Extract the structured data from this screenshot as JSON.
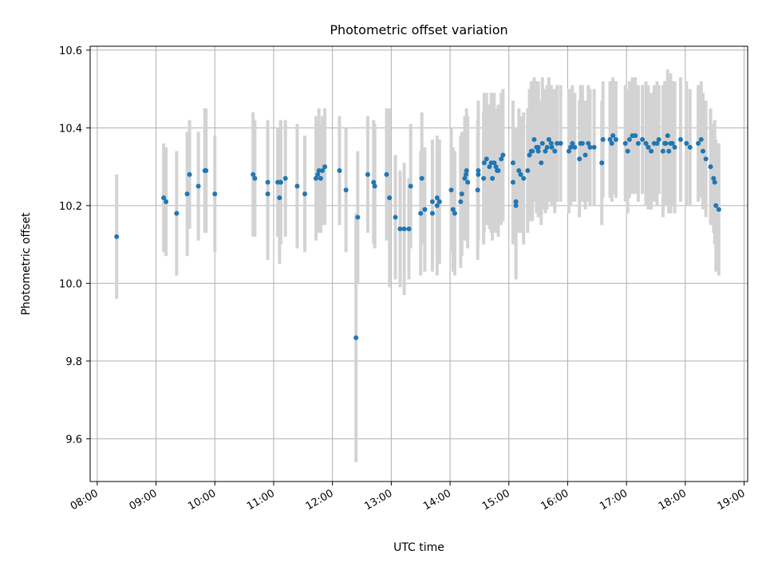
{
  "chart_data": {
    "type": "scatter",
    "title": "Photometric offset variation",
    "xlabel": "UTC time",
    "ylabel": "Photometric offset",
    "x_unit": "hours (UTC)",
    "xlim": [
      7.88,
      19.06
    ],
    "ylim": [
      9.49,
      10.61
    ],
    "x_ticks": [
      8,
      9,
      10,
      11,
      12,
      13,
      14,
      15,
      16,
      17,
      18,
      19
    ],
    "x_tick_labels": [
      "08:00",
      "09:00",
      "10:00",
      "11:00",
      "12:00",
      "13:00",
      "14:00",
      "15:00",
      "16:00",
      "17:00",
      "18:00",
      "19:00"
    ],
    "y_ticks": [
      9.6,
      9.8,
      10.0,
      10.2,
      10.4,
      10.6
    ],
    "y_tick_labels": [
      "9.6",
      "9.8",
      "10.0",
      "10.2",
      "10.4",
      "10.6"
    ],
    "grid": true,
    "colors": {
      "points": "#1f77b4",
      "errorbars": "#d3d3d3",
      "grid": "#b0b0b0"
    },
    "series": [
      {
        "x": [
          8.33,
          9.13,
          9.17,
          9.35,
          9.53,
          9.57,
          9.72,
          9.83,
          9.85,
          10.0,
          10.65,
          10.68,
          10.9,
          10.9,
          11.07,
          11.1,
          11.12,
          11.12,
          11.2,
          11.4,
          11.53,
          11.72,
          11.75,
          11.77,
          11.8,
          11.83,
          11.87,
          12.12,
          12.23,
          12.4,
          12.43,
          12.6,
          12.7,
          12.72,
          12.92,
          12.97,
          13.07,
          13.15,
          13.22,
          13.3,
          13.33,
          13.5,
          13.52,
          13.57,
          13.7,
          13.7,
          13.78,
          13.78,
          13.82,
          14.02,
          14.05,
          14.08,
          14.18,
          14.2,
          14.25,
          14.27,
          14.28,
          14.3,
          14.47,
          14.48,
          14.48,
          14.57,
          14.58,
          14.62,
          14.67,
          14.7,
          14.72,
          14.75,
          14.78,
          14.8,
          14.82,
          14.87,
          14.9,
          15.07,
          15.07,
          15.12,
          15.12,
          15.17,
          15.2,
          15.25,
          15.32,
          15.35,
          15.38,
          15.4,
          15.43,
          15.47,
          15.5,
          15.5,
          15.55,
          15.57,
          15.62,
          15.65,
          15.68,
          15.72,
          15.73,
          15.78,
          15.82,
          15.88,
          16.02,
          16.05,
          16.08,
          16.12,
          16.2,
          16.22,
          16.25,
          16.3,
          16.35,
          16.38,
          16.45,
          16.58,
          16.6,
          16.72,
          16.75,
          16.77,
          16.82,
          16.98,
          17.02,
          17.05,
          17.1,
          17.15,
          17.2,
          17.27,
          17.33,
          17.37,
          17.42,
          17.47,
          17.52,
          17.55,
          17.62,
          17.65,
          17.67,
          17.7,
          17.72,
          17.75,
          17.78,
          17.82,
          17.92,
          18.02,
          18.08,
          18.22,
          18.27,
          18.3,
          18.35,
          18.43,
          18.48,
          18.5,
          18.52,
          18.57
        ],
        "y": [
          10.12,
          10.22,
          10.21,
          10.18,
          10.23,
          10.28,
          10.25,
          10.29,
          10.29,
          10.23,
          10.28,
          10.27,
          10.23,
          10.26,
          10.26,
          10.22,
          10.26,
          10.26,
          10.27,
          10.25,
          10.23,
          10.27,
          10.28,
          10.29,
          10.27,
          10.29,
          10.3,
          10.29,
          10.24,
          9.86,
          10.17,
          10.28,
          10.26,
          10.25,
          10.28,
          10.22,
          10.17,
          10.14,
          10.14,
          10.14,
          10.25,
          10.18,
          10.27,
          10.19,
          10.18,
          10.21,
          10.2,
          10.22,
          10.21,
          10.24,
          10.19,
          10.18,
          10.21,
          10.23,
          10.27,
          10.28,
          10.29,
          10.26,
          10.24,
          10.28,
          10.29,
          10.27,
          10.31,
          10.32,
          10.3,
          10.31,
          10.27,
          10.31,
          10.3,
          10.29,
          10.29,
          10.32,
          10.33,
          10.31,
          10.26,
          10.2,
          10.21,
          10.29,
          10.28,
          10.27,
          10.29,
          10.33,
          10.34,
          10.34,
          10.37,
          10.35,
          10.34,
          10.35,
          10.31,
          10.36,
          10.34,
          10.35,
          10.37,
          10.36,
          10.35,
          10.34,
          10.36,
          10.36,
          10.34,
          10.35,
          10.36,
          10.35,
          10.32,
          10.36,
          10.36,
          10.33,
          10.36,
          10.35,
          10.35,
          10.31,
          10.37,
          10.37,
          10.36,
          10.38,
          10.37,
          10.36,
          10.34,
          10.37,
          10.38,
          10.38,
          10.36,
          10.37,
          10.36,
          10.35,
          10.34,
          10.36,
          10.36,
          10.37,
          10.34,
          10.36,
          10.36,
          10.38,
          10.34,
          10.36,
          10.36,
          10.35,
          10.37,
          10.36,
          10.35,
          10.36,
          10.37,
          10.34,
          10.32,
          10.3,
          10.27,
          10.26,
          10.2,
          10.19
        ],
        "error": [
          0.16,
          0.14,
          0.14,
          0.16,
          0.16,
          0.14,
          0.14,
          0.16,
          0.16,
          0.15,
          0.16,
          0.15,
          0.17,
          0.16,
          0.14,
          0.17,
          0.16,
          0.16,
          0.15,
          0.16,
          0.15,
          0.16,
          0.15,
          0.16,
          0.14,
          0.14,
          0.15,
          0.14,
          0.16,
          0.32,
          0.17,
          0.15,
          0.16,
          0.16,
          0.17,
          0.23,
          0.16,
          0.15,
          0.17,
          0.13,
          0.16,
          0.16,
          0.17,
          0.16,
          0.15,
          0.16,
          0.18,
          0.14,
          0.16,
          0.16,
          0.16,
          0.16,
          0.17,
          0.16,
          0.16,
          0.13,
          0.16,
          0.17,
          0.18,
          0.16,
          0.18,
          0.17,
          0.18,
          0.17,
          0.16,
          0.18,
          0.16,
          0.18,
          0.15,
          0.16,
          0.17,
          0.17,
          0.17,
          0.16,
          0.16,
          0.19,
          0.19,
          0.16,
          0.15,
          0.17,
          0.16,
          0.17,
          0.18,
          0.18,
          0.16,
          0.17,
          0.17,
          0.17,
          0.16,
          0.17,
          0.16,
          0.16,
          0.16,
          0.15,
          0.15,
          0.16,
          0.15,
          0.15,
          0.16,
          0.15,
          0.15,
          0.14,
          0.15,
          0.15,
          0.15,
          0.14,
          0.15,
          0.15,
          0.15,
          0.16,
          0.15,
          0.15,
          0.15,
          0.15,
          0.15,
          0.15,
          0.16,
          0.15,
          0.15,
          0.15,
          0.15,
          0.14,
          0.16,
          0.16,
          0.15,
          0.15,
          0.16,
          0.14,
          0.17,
          0.16,
          0.16,
          0.17,
          0.16,
          0.18,
          0.16,
          0.17,
          0.16,
          0.16,
          0.15,
          0.15,
          0.15,
          0.15,
          0.15,
          0.15,
          0.14,
          0.16,
          0.17,
          0.17
        ]
      }
    ]
  }
}
